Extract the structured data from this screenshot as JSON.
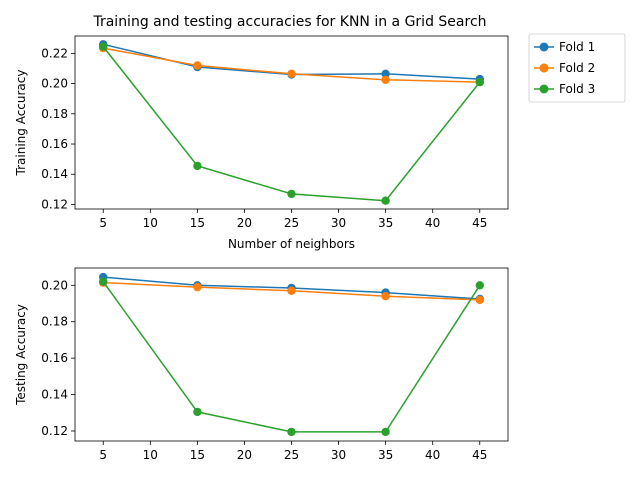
{
  "title": "Training and testing accuracies for KNN in a Grid Search",
  "colors": {
    "fold1": "#1f77b4",
    "fold2": "#ff7f0e",
    "fold3": "#2ca02c"
  },
  "legend": [
    "Fold 1",
    "Fold 2",
    "Fold 3"
  ],
  "chart_data": [
    {
      "type": "line",
      "title": "Training and testing accuracies for KNN in a Grid Search",
      "xlabel": "Number of neighbors",
      "ylabel": "Training Accuracy",
      "x": [
        5,
        15,
        25,
        35,
        45
      ],
      "xlim": [
        2,
        48
      ],
      "ylim": [
        0.117,
        0.2315
      ],
      "xticks": [
        5,
        10,
        15,
        20,
        25,
        30,
        35,
        40,
        45
      ],
      "yticks": [
        0.12,
        0.14,
        0.16,
        0.18,
        0.2,
        0.22
      ],
      "grid": false,
      "legend_placement": "outside-top-right",
      "series": [
        {
          "name": "Fold 1",
          "values": [
            0.226,
            0.211,
            0.206,
            0.2065,
            0.203
          ]
        },
        {
          "name": "Fold 2",
          "values": [
            0.2235,
            0.212,
            0.2065,
            0.2025,
            0.201
          ]
        },
        {
          "name": "Fold 3",
          "values": [
            0.2245,
            0.1455,
            0.127,
            0.1225,
            0.201
          ]
        }
      ]
    },
    {
      "type": "line",
      "title": "",
      "xlabel": "",
      "ylabel": "Testing Accuracy",
      "x": [
        5,
        15,
        25,
        35,
        45
      ],
      "xlim": [
        2,
        48
      ],
      "ylim": [
        0.1145,
        0.2095
      ],
      "xticks": [
        5,
        10,
        15,
        20,
        25,
        30,
        35,
        40,
        45
      ],
      "yticks": [
        0.12,
        0.14,
        0.16,
        0.18,
        0.2
      ],
      "grid": false,
      "series": [
        {
          "name": "Fold 1",
          "values": [
            0.2045,
            0.2,
            0.1985,
            0.196,
            0.1925
          ]
        },
        {
          "name": "Fold 2",
          "values": [
            0.2015,
            0.199,
            0.197,
            0.194,
            0.192
          ]
        },
        {
          "name": "Fold 3",
          "values": [
            0.202,
            0.1305,
            0.1195,
            0.1195,
            0.2
          ]
        }
      ]
    }
  ]
}
